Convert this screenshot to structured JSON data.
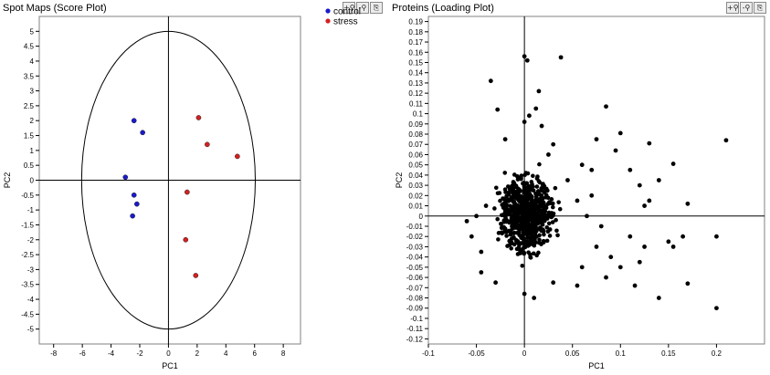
{
  "panels": [
    {
      "title": "Spot Maps (Score Plot)",
      "toolbar": [
        "zoom-in-icon",
        "zoom-out-icon",
        "export-icon"
      ]
    },
    {
      "title": "Proteins (Loading Plot)",
      "toolbar": [
        "zoom-in-icon",
        "zoom-out-icon",
        "export-icon"
      ]
    }
  ],
  "toolbar_glyphs": {
    "zoom-in-icon": "+⚲",
    "zoom-out-icon": "-⚲",
    "export-icon": "⎘"
  },
  "chart_data": [
    {
      "type": "scatter",
      "title": "Spot Maps (Score Plot)",
      "xlabel": "PC1",
      "ylabel": "PC2",
      "xlim": [
        -9,
        9.2
      ],
      "ylim": [
        -5.5,
        5.5
      ],
      "xticks": [
        -8,
        -6,
        -4,
        -2,
        0,
        2,
        4,
        6,
        8
      ],
      "yticks": [
        5,
        4.5,
        4,
        3.5,
        3,
        2.5,
        2,
        1.5,
        1,
        0.5,
        0,
        -0.5,
        -1,
        -1.5,
        -2,
        -2.5,
        -3,
        -3.5,
        -4,
        -4.5,
        -5
      ],
      "ellipse": {
        "cx": 0,
        "cy": 0,
        "rx": 12.1,
        "ry": 5.0
      },
      "legend": {
        "placement": "top-right-outside"
      },
      "series": [
        {
          "name": "control",
          "color": "#1a1acc",
          "points": [
            [
              -2.4,
              2.0
            ],
            [
              -1.8,
              1.6
            ],
            [
              -3.0,
              0.1
            ],
            [
              -2.4,
              -0.5
            ],
            [
              -2.2,
              -0.8
            ],
            [
              -2.5,
              -1.2
            ]
          ]
        },
        {
          "name": "stress",
          "color": "#d42020",
          "points": [
            [
              2.1,
              2.1
            ],
            [
              2.7,
              1.2
            ],
            [
              4.8,
              0.8
            ],
            [
              1.3,
              -0.4
            ],
            [
              1.2,
              -2.0
            ],
            [
              1.9,
              -3.2
            ]
          ]
        }
      ]
    },
    {
      "type": "scatter",
      "title": "Proteins (Loading Plot)",
      "xlabel": "PC1",
      "ylabel": "PC2",
      "xlim": [
        -0.1,
        0.25
      ],
      "ylim": [
        -0.125,
        0.195
      ],
      "xticks": [
        -0.1,
        -0.05,
        0,
        0.05,
        0.1,
        0.15,
        0.2
      ],
      "yticks": [
        0.19,
        0.18,
        0.17,
        0.16,
        0.15,
        0.14,
        0.13,
        0.12,
        0.11,
        0.1,
        0.09,
        0.08,
        0.07,
        0.06,
        0.05,
        0.04,
        0.03,
        0.02,
        0.01,
        0,
        -0.01,
        -0.02,
        -0.03,
        -0.04,
        -0.05,
        -0.06,
        -0.07,
        -0.08,
        -0.09,
        -0.1,
        -0.11,
        -0.12
      ],
      "series": [
        {
          "color": "#000000",
          "points": [
            [
              0.0,
              0.156
            ],
            [
              0.003,
              0.152
            ],
            [
              0.038,
              0.155
            ],
            [
              -0.035,
              0.132
            ],
            [
              0.015,
              0.122
            ],
            [
              0.012,
              0.105
            ],
            [
              -0.028,
              0.104
            ],
            [
              0.005,
              0.098
            ],
            [
              0.0,
              0.092
            ],
            [
              0.018,
              0.088
            ],
            [
              0.085,
              0.107
            ],
            [
              0.1,
              0.081
            ],
            [
              0.13,
              0.071
            ],
            [
              0.155,
              0.051
            ],
            [
              0.21,
              0.074
            ],
            [
              0.095,
              0.064
            ],
            [
              0.11,
              0.045
            ],
            [
              0.075,
              0.075
            ],
            [
              0.07,
              0.045
            ],
            [
              0.06,
              0.05
            ],
            [
              0.12,
              0.03
            ],
            [
              0.14,
              0.035
            ],
            [
              0.125,
              0.01
            ],
            [
              0.13,
              0.015
            ],
            [
              0.17,
              0.012
            ],
            [
              0.11,
              -0.02
            ],
            [
              0.125,
              -0.03
            ],
            [
              0.15,
              -0.025
            ],
            [
              0.165,
              -0.02
            ],
            [
              0.2,
              -0.02
            ],
            [
              0.155,
              -0.03
            ],
            [
              0.12,
              -0.045
            ],
            [
              0.09,
              -0.04
            ],
            [
              0.1,
              -0.05
            ],
            [
              0.085,
              -0.06
            ],
            [
              0.14,
              -0.08
            ],
            [
              0.115,
              -0.068
            ],
            [
              0.17,
              -0.066
            ],
            [
              0.2,
              -0.09
            ],
            [
              0.055,
              -0.068
            ],
            [
              0.03,
              -0.065
            ],
            [
              0.0,
              -0.076
            ],
            [
              -0.03,
              -0.065
            ],
            [
              0.01,
              -0.08
            ],
            [
              -0.045,
              -0.055
            ],
            [
              -0.06,
              -0.005
            ],
            [
              -0.055,
              -0.02
            ],
            [
              -0.05,
              0.0
            ],
            [
              -0.04,
              0.01
            ],
            [
              -0.045,
              -0.035
            ],
            [
              0.065,
              0.0
            ],
            [
              0.07,
              0.02
            ],
            [
              0.055,
              0.015
            ],
            [
              0.08,
              -0.01
            ],
            [
              0.075,
              -0.03
            ],
            [
              0.06,
              -0.05
            ],
            [
              0.045,
              0.035
            ],
            [
              0.03,
              0.07
            ],
            [
              0.025,
              0.06
            ],
            [
              -0.02,
              0.075
            ]
          ]
        }
      ]
    }
  ]
}
